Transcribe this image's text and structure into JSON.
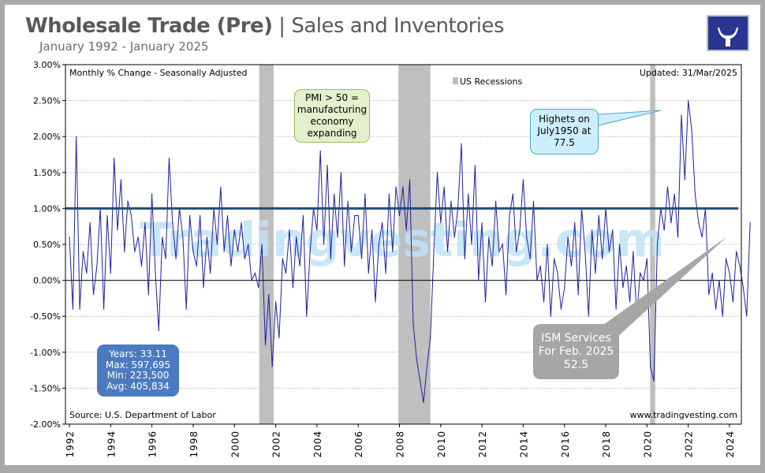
{
  "header": {
    "title_bold": "Wholesale Trade (Pre)",
    "title_sep": " | ",
    "title_rest": "Sales and Inventories",
    "subtitle": "January 1992 - January 2025",
    "logo_icon": "bull-skull-logo-icon"
  },
  "annotations": {
    "top_left": "Monthly % Change - Seasonally Adjusted",
    "top_right": "Updated: 31/Mar/2025",
    "legend": "US Recessions",
    "source": "Source: U.S. Department of Labor",
    "website": "www.tradingvesting.com",
    "watermark": "Tradingvesting.com",
    "pmi_box": [
      "PMI > 50 =",
      "manufacturing",
      "economy",
      "expanding"
    ],
    "highest_box": [
      "Highets on",
      "July1950 at",
      "77.5"
    ],
    "ism_box": [
      "ISM Services",
      "For Feb. 2025",
      "52.5"
    ],
    "stats_box": [
      "Years: 33.11",
      "Max: 597,695",
      "Min: 223,500",
      "Avg: 405,834"
    ]
  },
  "colors": {
    "series": "#1f1fa0",
    "reference_line": "#1f4e79",
    "recession": "#bfbfbf",
    "pmi_box": "#e2f0cb",
    "highest_box": "#cdeefc",
    "ism_box": "#a6a6a6",
    "stats_box": "#4a7bbf",
    "watermark": "#bfe3f7"
  },
  "chart_data": {
    "type": "line",
    "title": "Wholesale Trade (Pre) | Sales and Inventories",
    "xlabel": "",
    "ylabel": "",
    "x_start": "1992-01",
    "x_step_months": 2,
    "xlim": [
      1992,
      2025.1
    ],
    "ylim": [
      -2.0,
      3.0
    ],
    "y_ticks": [
      "-2.00%",
      "-1.50%",
      "-1.00%",
      "-0.50%",
      "0.00%",
      "0.50%",
      "1.00%",
      "1.50%",
      "2.00%",
      "2.50%",
      "3.00%"
    ],
    "x_ticks": [
      "1992",
      "1994",
      "1996",
      "1998",
      "2000",
      "2002",
      "2004",
      "2006",
      "2008",
      "2010",
      "2012",
      "2014",
      "2016",
      "2018",
      "2020",
      "2022",
      "2024"
    ],
    "grid": true,
    "reference_line": 1.0,
    "recessions": [
      [
        2001.2,
        2001.9
      ],
      [
        2007.95,
        2009.5
      ],
      [
        2020.15,
        2020.4
      ]
    ],
    "values": [
      0.6,
      -0.4,
      2.0,
      -0.4,
      0.4,
      0.1,
      0.8,
      -0.2,
      0.2,
      1.0,
      -0.4,
      0.9,
      0.1,
      1.7,
      0.7,
      1.4,
      0.4,
      1.1,
      0.9,
      0.4,
      0.6,
      0.2,
      0.8,
      -0.2,
      1.2,
      0.1,
      -0.7,
      0.6,
      0.3,
      1.7,
      0.8,
      0.3,
      1.0,
      0.6,
      -0.4,
      0.9,
      0.4,
      0.2,
      0.9,
      -0.1,
      0.6,
      0.1,
      1.0,
      0.5,
      1.3,
      0.4,
      0.9,
      0.2,
      0.7,
      0.4,
      0.8,
      0.3,
      0.5,
      0.0,
      0.1,
      -0.1,
      0.5,
      -0.9,
      -0.2,
      -1.2,
      -0.3,
      -0.8,
      0.3,
      0.1,
      0.7,
      -0.1,
      0.6,
      0.2,
      0.9,
      -0.5,
      0.4,
      1.0,
      0.7,
      1.8,
      0.5,
      1.6,
      0.3,
      1.2,
      0.6,
      1.5,
      0.2,
      1.1,
      0.4,
      0.9,
      0.9,
      0.3,
      1.2,
      0.1,
      0.7,
      -0.3,
      0.5,
      0.8,
      0.1,
      1.2,
      0.4,
      1.3,
      0.9,
      1.3,
      0.7,
      1.4,
      -0.6,
      -1.1,
      -1.4,
      -1.7,
      -1.2,
      -0.8,
      0.4,
      1.5,
      0.8,
      1.3,
      0.4,
      1.1,
      0.6,
      1.0,
      1.9,
      0.3,
      1.2,
      0.5,
      1.6,
      0.0,
      0.8,
      -0.3,
      0.6,
      0.2,
      1.1,
      0.4,
      0.5,
      -0.2,
      0.9,
      1.2,
      0.4,
      0.7,
      1.4,
      0.6,
      0.3,
      1.1,
      0.0,
      0.2,
      -0.3,
      0.5,
      -0.5,
      0.3,
      0.1,
      -0.4,
      -0.1,
      0.6,
      0.2,
      0.8,
      -0.2,
      1.0,
      0.4,
      -0.5,
      0.7,
      0.1,
      0.9,
      0.3,
      1.0,
      0.4,
      0.7,
      -0.4,
      0.5,
      -0.1,
      0.2,
      -0.3,
      0.4,
      -0.5,
      0.1,
      0.0,
      0.3,
      -1.2,
      -1.4,
      0.5,
      1.0,
      0.7,
      1.3,
      0.8,
      1.2,
      0.6,
      2.3,
      1.4,
      2.5,
      2.1,
      1.2,
      0.8,
      0.6,
      1.0,
      -0.2,
      0.1,
      -0.4,
      0.0,
      -0.5,
      0.3,
      0.1,
      -0.3,
      0.4,
      0.2,
      -0.1,
      -0.5,
      0.8
    ]
  }
}
